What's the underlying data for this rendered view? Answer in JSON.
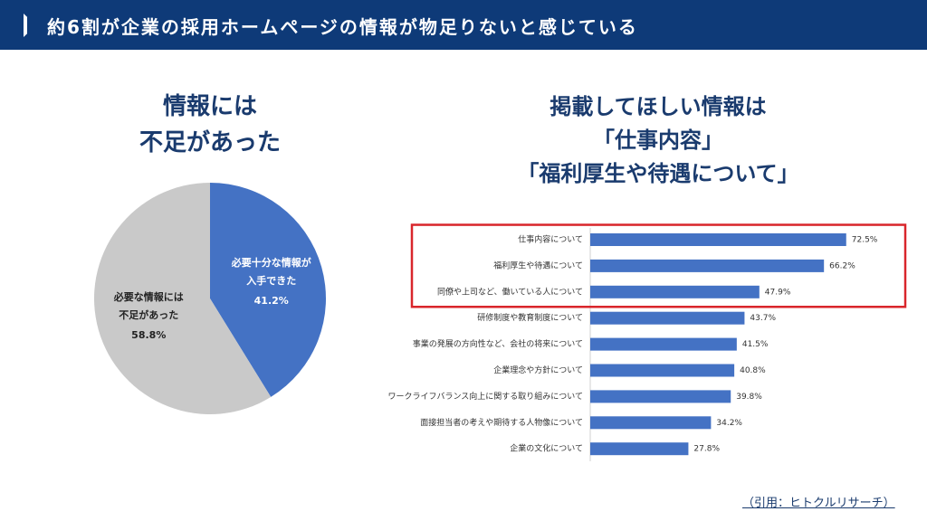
{
  "header": {
    "title": "約6割が企業の採用ホームページの情報が物足りないと感じている"
  },
  "citation": "（引用：ヒトクルリサーチ）",
  "chart_data": [
    {
      "type": "pie",
      "title": "情報には\n不足があった",
      "categories": [
        "必要十分な情報が\n入手できた",
        "必要な情報には\n不足があった"
      ],
      "values": [
        41.2,
        58.8
      ],
      "value_labels": [
        "41.2%",
        "58.8%"
      ],
      "colors": [
        "#4472c4",
        "#c9c9c9"
      ],
      "label_colors": [
        "#ffffff",
        "#222222"
      ]
    },
    {
      "type": "barh",
      "title": "掲載してほしい情報は\n「仕事内容」\n「福利厚生や待遇について」",
      "categories": [
        "仕事内容について",
        "福利厚生や待遇について",
        "同僚や上司など、働いている人について",
        "研修制度や教育制度について",
        "事業の発展の方向性など、会社の将来について",
        "企業理念や方針について",
        "ワークライフバランス向上に関する取り組みについて",
        "面接担当者の考えや期待する人物像について",
        "企業の文化について"
      ],
      "values": [
        72.5,
        66.2,
        47.9,
        43.7,
        41.5,
        40.8,
        39.8,
        34.2,
        27.8
      ],
      "value_labels": [
        "72.5%",
        "66.2%",
        "47.9%",
        "43.7%",
        "41.5%",
        "40.8%",
        "39.8%",
        "34.2%",
        "27.8%"
      ],
      "color": "#4472c4",
      "xlim": [
        0,
        80
      ],
      "highlight": {
        "count": 3,
        "color": "#d9262b"
      }
    }
  ]
}
